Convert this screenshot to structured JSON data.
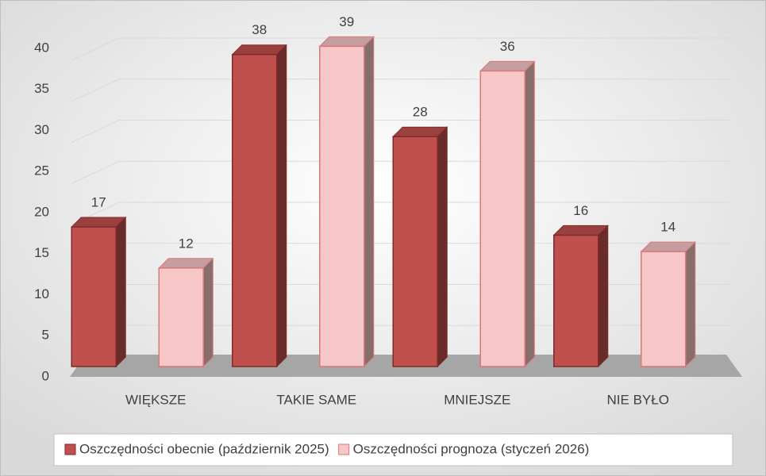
{
  "chart_data": {
    "type": "bar3d",
    "categories": [
      "WIĘKSZE",
      "TAKIE SAME",
      "MNIEJSZE",
      "NIE BYŁO"
    ],
    "series": [
      {
        "name": "Oszczędności obecnie (październik 2025)",
        "color": "#c0504d",
        "values": [
          17,
          38,
          28,
          16
        ]
      },
      {
        "name": "Oszczędności prognoza (styczeń 2026)",
        "color": "#f7c6c7",
        "values": [
          12,
          39,
          36,
          14
        ]
      }
    ],
    "ylim": [
      0,
      40
    ],
    "yticks": [
      0,
      5,
      10,
      15,
      20,
      25,
      30,
      35,
      40
    ],
    "grid": true,
    "legend": "bottom"
  }
}
